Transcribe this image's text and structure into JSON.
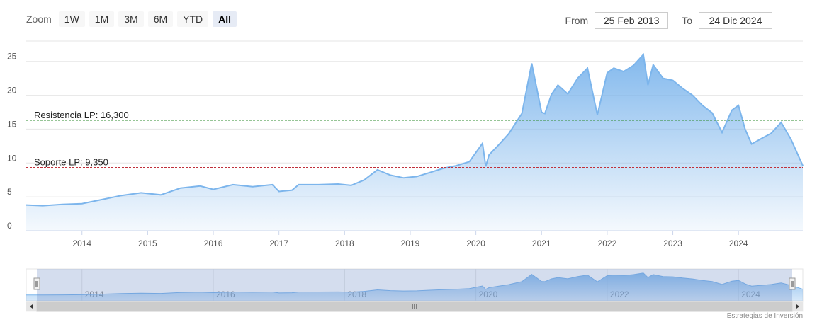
{
  "zoom": {
    "label": "Zoom",
    "buttons": [
      "1W",
      "1M",
      "3M",
      "6M",
      "YTD",
      "All"
    ],
    "active": "All"
  },
  "range": {
    "from_label": "From",
    "from_value": "25 Feb 2013",
    "to_label": "To",
    "to_value": "24 Dic 2024"
  },
  "credit": "Estrategias de Inversión",
  "colors": {
    "area": "#7cb5ec",
    "resistance": "#2e8b2e",
    "support": "#c0303a"
  },
  "chart_data": {
    "type": "area",
    "x_range": [
      "2013-02-25",
      "2024-12-24"
    ],
    "ylim": [
      0,
      28
    ],
    "yticks": [
      0,
      5,
      10,
      15,
      20,
      25
    ],
    "xticks": [
      "2014",
      "2015",
      "2016",
      "2017",
      "2018",
      "2019",
      "2020",
      "2021",
      "2022",
      "2023",
      "2024"
    ],
    "navigator_ticks": [
      "2014",
      "2016",
      "2018",
      "2020",
      "2022",
      "2024"
    ],
    "grid": true,
    "lines": [
      {
        "label": "Resistencia LP: 16,300",
        "value": 16.3,
        "color": "#2e8b2e"
      },
      {
        "label": "Soporte LP: 9,350",
        "value": 9.35,
        "color": "#c0303a"
      }
    ],
    "series": [
      {
        "x": [
          2013.15,
          2013.4,
          2013.7,
          2014.0,
          2014.3,
          2014.6,
          2014.9,
          2015.2,
          2015.5,
          2015.8,
          2016.0,
          2016.3,
          2016.6,
          2016.9,
          2017.0,
          2017.2,
          2017.3,
          2017.6,
          2017.9,
          2018.1,
          2018.3,
          2018.5,
          2018.7,
          2018.9,
          2019.1,
          2019.3,
          2019.5,
          2019.7,
          2019.9,
          2020.1,
          2020.15,
          2020.2,
          2020.35,
          2020.5,
          2020.7,
          2020.85,
          2021.0,
          2021.05,
          2021.15,
          2021.25,
          2021.4,
          2021.55,
          2021.7,
          2021.85,
          2022.0,
          2022.1,
          2022.25,
          2022.4,
          2022.55,
          2022.62,
          2022.7,
          2022.85,
          2023.0,
          2023.15,
          2023.3,
          2023.45,
          2023.6,
          2023.75,
          2023.9,
          2024.0,
          2024.1,
          2024.2,
          2024.35,
          2024.5,
          2024.65,
          2024.8,
          2024.98
        ],
        "y": [
          3.8,
          3.7,
          3.9,
          4.0,
          4.6,
          5.2,
          5.6,
          5.3,
          6.3,
          6.6,
          6.1,
          6.8,
          6.5,
          6.8,
          5.8,
          6.0,
          6.8,
          6.8,
          6.9,
          6.7,
          7.5,
          9.0,
          8.2,
          7.8,
          8.0,
          8.6,
          9.2,
          9.6,
          10.2,
          12.9,
          9.5,
          11.2,
          12.7,
          14.3,
          17.3,
          24.7,
          17.5,
          17.3,
          20.1,
          21.5,
          20.2,
          22.5,
          24.0,
          17.1,
          23.3,
          24.0,
          23.5,
          24.4,
          26.0,
          21.5,
          24.5,
          22.5,
          22.2,
          21.0,
          20.0,
          18.5,
          17.4,
          14.5,
          17.8,
          18.5,
          15.0,
          12.8,
          13.6,
          14.4,
          16.0,
          13.5,
          9.6
        ]
      }
    ]
  }
}
